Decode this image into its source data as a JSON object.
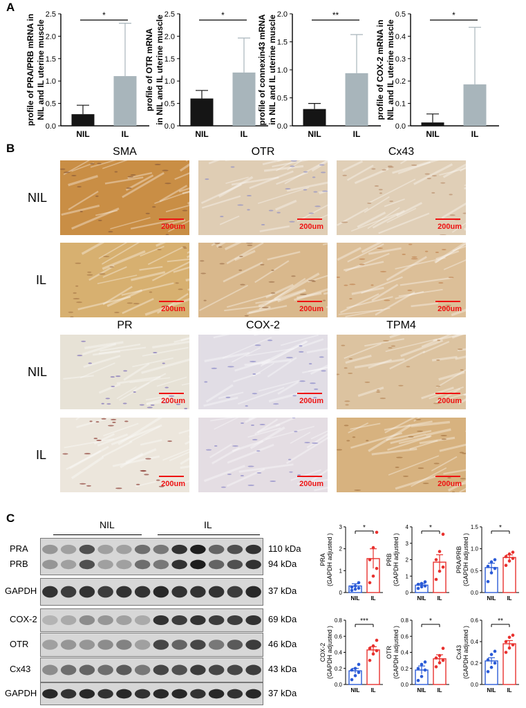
{
  "panel_labels": {
    "a": "A",
    "b": "B",
    "c": "C"
  },
  "panel_a_charts": [
    {
      "ylabel_lines": [
        "profile of PRA/PRB mRNA in",
        "NIL and IL uterine muscle"
      ],
      "yticks": [
        "0.0",
        "0.5",
        "1.0",
        "1.5",
        "2.0",
        "2.5"
      ],
      "ymax": 2.5,
      "categories": [
        "NIL",
        "IL"
      ],
      "means": [
        0.26,
        1.11
      ],
      "errors": [
        0.2,
        1.18
      ],
      "sig": "*"
    },
    {
      "ylabel_lines": [
        "profile of OTR mRNA",
        "in NIL and IL uterine muscle"
      ],
      "yticks": [
        "0.0",
        "0.5",
        "1.0",
        "1.5",
        "2.0",
        "2.5"
      ],
      "ymax": 2.5,
      "categories": [
        "NIL",
        "IL"
      ],
      "means": [
        0.61,
        1.19
      ],
      "errors": [
        0.18,
        0.77
      ],
      "sig": "*"
    },
    {
      "ylabel_lines": [
        "profile of connexin43 mRNA",
        "in NIL and IL uterine muscle"
      ],
      "yticks": [
        "0.0",
        "0.5",
        "1.0",
        "1.5",
        "2.0"
      ],
      "ymax": 2.0,
      "categories": [
        "NIL",
        "IL"
      ],
      "means": [
        0.3,
        0.94
      ],
      "errors": [
        0.1,
        0.69
      ],
      "sig": "**"
    },
    {
      "ylabel_lines": [
        "profile of COX-2 mRNA in",
        "NIL and IL uterine muscle"
      ],
      "yticks": [
        "0.0",
        "0.1",
        "0.2",
        "0.3",
        "0.4",
        "0.5"
      ],
      "ymax": 0.5,
      "categories": [
        "NIL",
        "IL"
      ],
      "means": [
        0.015,
        0.185
      ],
      "errors": [
        0.038,
        0.255
      ],
      "sig": "*"
    }
  ],
  "panel_b": {
    "columns_top": [
      "SMA",
      "OTR",
      "Cx43"
    ],
    "columns_bottom": [
      "PR",
      "COX-2",
      "TPM4"
    ],
    "rows": [
      "NIL",
      "IL",
      "NIL",
      "IL"
    ],
    "scale_bar": "200um",
    "tiles": [
      {
        "stain": "#c98e45",
        "cells": "#8b5d3b"
      },
      {
        "stain": "#dfcdb4",
        "cells": "#8e8fc4"
      },
      {
        "stain": "#e0cfb7",
        "cells": "#b98e6c"
      },
      {
        "stain": "#d7b070",
        "cells": "#a97a4a"
      },
      {
        "stain": "#d9b88c",
        "cells": "#a0744e"
      },
      {
        "stain": "#dcbf98",
        "cells": "#c08452"
      },
      {
        "stain": "#e7e2d6",
        "cells": "#7d6fb8"
      },
      {
        "stain": "#e1dde5",
        "cells": "#8786c7"
      },
      {
        "stain": "#dcc3a0",
        "cells": "#b8895a"
      },
      {
        "stain": "#ece6dc",
        "cells": "#8d3f36"
      },
      {
        "stain": "#e4dde3",
        "cells": "#8d89c8"
      },
      {
        "stain": "#d7b27f",
        "cells": "#a67645"
      }
    ]
  },
  "panel_c": {
    "groups": [
      "NIL",
      "IL"
    ],
    "blots": [
      {
        "labels": [
          "PRA",
          "PRB"
        ],
        "kda": [
          "110 kDa",
          "94 kDa"
        ],
        "intensity": [
          0.35,
          0.3,
          0.7,
          0.3,
          0.3,
          0.55,
          0.5,
          0.85,
          0.95,
          0.6,
          0.7,
          0.85
        ]
      },
      {
        "labels": [
          "GAPDH"
        ],
        "kda": [
          "37 kDa"
        ],
        "intensity": [
          0.85,
          0.8,
          0.85,
          0.8,
          0.85,
          0.85,
          0.9,
          0.85,
          0.85,
          0.85,
          0.8,
          0.9
        ]
      },
      {
        "labels": [
          "COX-2"
        ],
        "kda": [
          "69 kDa"
        ],
        "intensity": [
          0.2,
          0.25,
          0.4,
          0.35,
          0.3,
          0.25,
          0.85,
          0.8,
          0.85,
          0.8,
          0.8,
          0.85
        ]
      },
      {
        "labels": [
          "OTR"
        ],
        "kda": [
          "46 kDa"
        ],
        "intensity": [
          0.3,
          0.35,
          0.35,
          0.4,
          0.45,
          0.3,
          0.75,
          0.6,
          0.75,
          0.5,
          0.65,
          0.8
        ]
      },
      {
        "labels": [
          "Cx43"
        ],
        "kda": [
          "43 kDa"
        ],
        "intensity": [
          0.4,
          0.55,
          0.6,
          0.55,
          0.65,
          0.5,
          0.75,
          0.7,
          0.8,
          0.75,
          0.75,
          0.8
        ]
      },
      {
        "labels": [
          "GAPDH"
        ],
        "kda": [
          "37 kDa"
        ],
        "intensity": [
          0.9,
          0.85,
          0.9,
          0.85,
          0.9,
          0.85,
          0.9,
          0.9,
          0.85,
          0.9,
          0.85,
          0.9
        ]
      }
    ]
  },
  "chart_data": [
    {
      "type": "bar",
      "title": "",
      "categories": [
        "NIL",
        "IL"
      ],
      "ylabel_lines": [
        "PRA",
        "(GAPDH adjusted )"
      ],
      "yticks": [
        "0",
        "1",
        "2",
        "3"
      ],
      "ylim": [
        0,
        3
      ],
      "means": [
        0.3,
        1.55
      ],
      "sem": [
        0.1,
        0.45
      ],
      "sig": "*",
      "points": [
        [
          0.1,
          0.15,
          0.2,
          0.25,
          0.3,
          0.45
        ],
        [
          0.45,
          0.75,
          1.1,
          1.5,
          2.05,
          2.75
        ]
      ]
    },
    {
      "type": "bar",
      "title": "",
      "categories": [
        "NIL",
        "IL"
      ],
      "ylabel_lines": [
        "PRB",
        "(GAPDH adjusted )"
      ],
      "yticks": [
        "0",
        "1",
        "2",
        "3",
        "4"
      ],
      "ylim": [
        0,
        4
      ],
      "means": [
        0.45,
        1.85
      ],
      "sem": [
        0.1,
        0.45
      ],
      "sig": "*",
      "points": [
        [
          0.25,
          0.35,
          0.4,
          0.5,
          0.55,
          0.65
        ],
        [
          0.8,
          1.3,
          1.55,
          2.0,
          2.5,
          3.55
        ]
      ]
    },
    {
      "type": "bar",
      "title": "",
      "categories": [
        "NIL",
        "IL"
      ],
      "ylabel_lines": [
        "PRA/PRB",
        "(GAPDH adjusted )"
      ],
      "yticks": [
        "0.0",
        "0.5",
        "1.0",
        "1.5"
      ],
      "ylim": [
        0,
        1.5
      ],
      "means": [
        0.57,
        0.8
      ],
      "sem": [
        0.1,
        0.06
      ],
      "sig": "*",
      "points": [
        [
          0.25,
          0.45,
          0.55,
          0.6,
          0.7,
          0.75
        ],
        [
          0.62,
          0.72,
          0.78,
          0.82,
          0.88,
          0.92
        ]
      ]
    },
    {
      "type": "bar",
      "title": "",
      "categories": [
        "NIL",
        "IL"
      ],
      "ylabel_lines": [
        "COX-2",
        "(GAPDH adjusted )"
      ],
      "yticks": [
        "0.0",
        "0.2",
        "0.4",
        "0.6",
        "0.8"
      ],
      "ylim": [
        0,
        0.8
      ],
      "means": [
        0.17,
        0.43
      ],
      "sem": [
        0.03,
        0.04
      ],
      "sig": "***",
      "points": [
        [
          0.06,
          0.11,
          0.15,
          0.18,
          0.2,
          0.25
        ],
        [
          0.3,
          0.38,
          0.42,
          0.45,
          0.48,
          0.55
        ]
      ]
    },
    {
      "type": "bar",
      "title": "",
      "categories": [
        "NIL",
        "IL"
      ],
      "ylabel_lines": [
        "OTR",
        "(GAPDH adjusted )"
      ],
      "yticks": [
        "0.0",
        "0.2",
        "0.4",
        "0.6",
        "0.8"
      ],
      "ylim": [
        0,
        0.8
      ],
      "means": [
        0.18,
        0.32
      ],
      "sem": [
        0.05,
        0.05
      ],
      "sig": "*",
      "points": [
        [
          0.05,
          0.1,
          0.18,
          0.2,
          0.25,
          0.28
        ],
        [
          0.22,
          0.27,
          0.3,
          0.33,
          0.36,
          0.45
        ]
      ]
    },
    {
      "type": "bar",
      "title": "",
      "categories": [
        "NIL",
        "IL"
      ],
      "ylabel_lines": [
        "Cx43",
        "(GAPDH adjusted )"
      ],
      "yticks": [
        "0.0",
        "0.2",
        "0.4",
        "0.6"
      ],
      "ylim": [
        0,
        0.6
      ],
      "means": [
        0.22,
        0.38
      ],
      "sem": [
        0.03,
        0.03
      ],
      "sig": "**",
      "points": [
        [
          0.12,
          0.16,
          0.2,
          0.23,
          0.28,
          0.31
        ],
        [
          0.3,
          0.34,
          0.37,
          0.4,
          0.44,
          0.46
        ]
      ]
    }
  ],
  "colors": {
    "a_nil": "#151515",
    "a_il": "#a8b5bb",
    "c_nil": "#2b5bd7",
    "c_il": "#e8312e",
    "scale": "#e11111"
  }
}
